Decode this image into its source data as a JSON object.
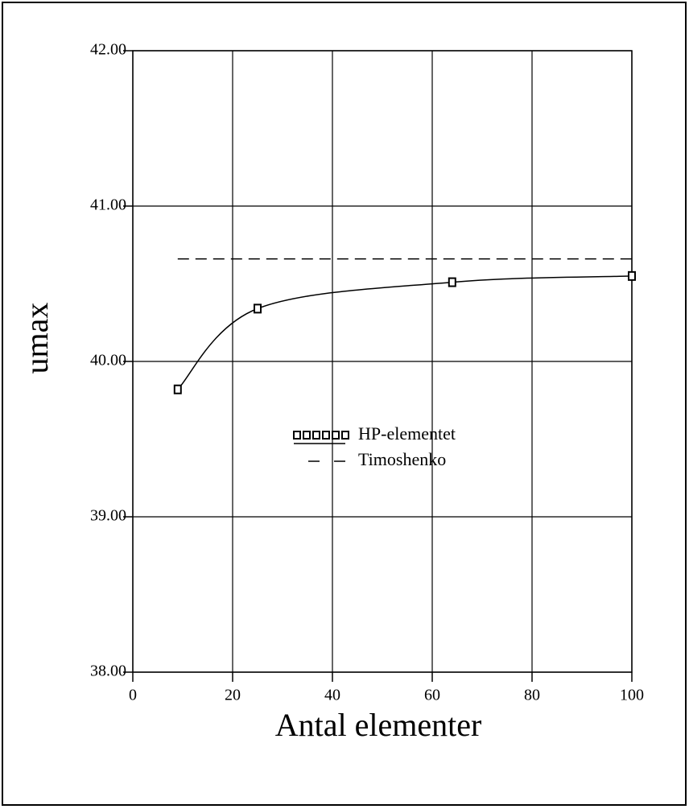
{
  "chart_data": {
    "type": "line",
    "xlabel": "Antal elementer",
    "ylabel": "umax",
    "series": [
      {
        "name": "HP-elementet",
        "color": "#000000",
        "style": "solid",
        "marker": "square",
        "x": [
          9,
          25,
          64,
          100
        ],
        "values": [
          39.82,
          40.34,
          40.51,
          40.55
        ]
      },
      {
        "name": "Timoshenko",
        "color": "#000000",
        "style": "dashed",
        "marker": "none",
        "x": [
          9,
          100
        ],
        "values": [
          40.66,
          40.66
        ]
      }
    ],
    "xlim": [
      0,
      100
    ],
    "xticks": [
      0,
      20,
      40,
      60,
      80,
      100
    ],
    "ylim": [
      38,
      42
    ],
    "yticks": [
      {
        "value": 38,
        "label": "38.00"
      },
      {
        "value": 39,
        "label": "39.00"
      },
      {
        "value": 40,
        "label": "40.00"
      },
      {
        "value": 41,
        "label": "41.00"
      },
      {
        "value": 42,
        "label": "42.00"
      }
    ],
    "grid": true,
    "legend": "center"
  }
}
